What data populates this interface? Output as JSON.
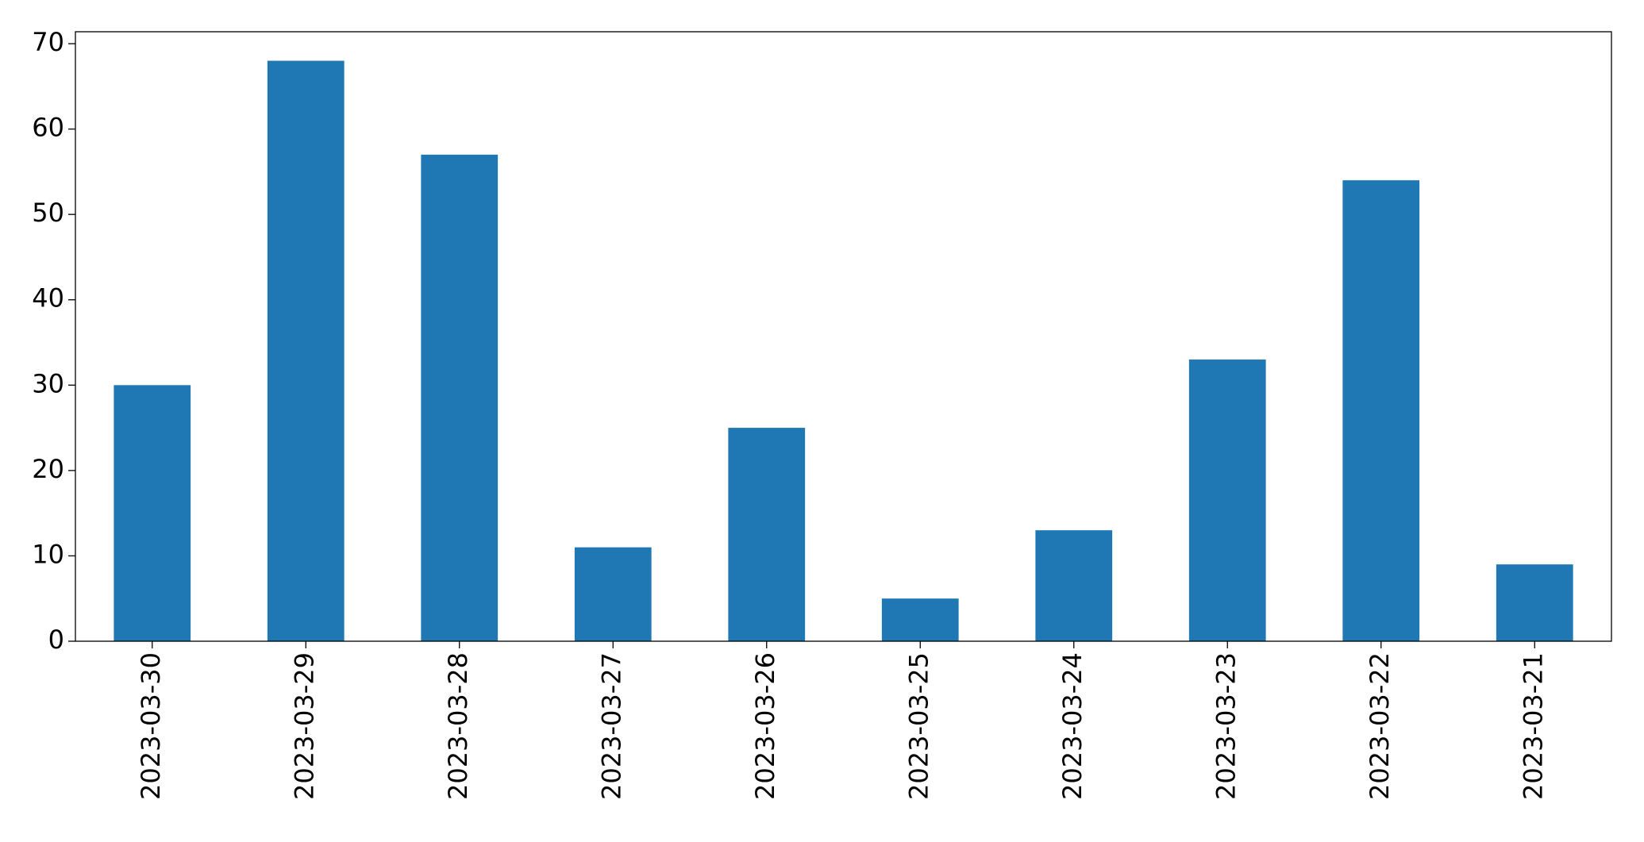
{
  "chart_data": {
    "type": "bar",
    "categories": [
      "2023-03-30",
      "2023-03-29",
      "2023-03-28",
      "2023-03-27",
      "2023-03-26",
      "2023-03-25",
      "2023-03-24",
      "2023-03-23",
      "2023-03-22",
      "2023-03-21"
    ],
    "values": [
      30,
      68,
      57,
      11,
      25,
      5,
      13,
      33,
      54,
      9
    ],
    "color": "#1f77b4",
    "ylim": [
      0,
      71.4
    ],
    "yticks": [
      0,
      10,
      20,
      30,
      40,
      50,
      60,
      70
    ],
    "grid": false
  }
}
